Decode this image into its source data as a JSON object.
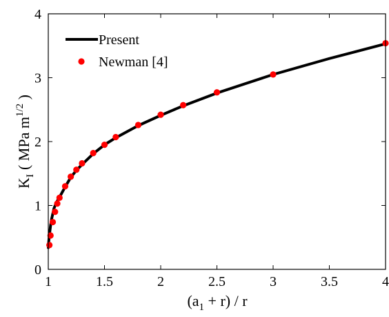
{
  "chart_data": {
    "type": "line",
    "xlabel": "(a1 + r) / r",
    "xlabel_parts": {
      "open": "(a",
      "sub": "1",
      "rest": " + r) / r"
    },
    "ylabel": "KI ( MPa m1/2 )",
    "ylabel_parts": {
      "base": "K",
      "sub": "I",
      "unit": "( MPa m",
      "sup": "1/2",
      "close": " )"
    },
    "xlim": [
      1,
      4
    ],
    "ylim": [
      0,
      4
    ],
    "xticks": [
      1,
      1.5,
      2,
      2.5,
      3,
      3.5,
      4
    ],
    "xtick_labels": [
      "1",
      "1.5",
      "2",
      "2.5",
      "3",
      "3.5",
      "4"
    ],
    "yticks": [
      0,
      1,
      2,
      3,
      4
    ],
    "ytick_labels": [
      "0",
      "1",
      "2",
      "3",
      "4"
    ],
    "grid": false,
    "legend_position": "top-left",
    "series": [
      {
        "name": "Present",
        "style": "line",
        "color": "#000000",
        "x": [
          1.0,
          1.005,
          1.01,
          1.02,
          1.03,
          1.05,
          1.07,
          1.1,
          1.15,
          1.2,
          1.25,
          1.3,
          1.4,
          1.5,
          1.6,
          1.8,
          2.0,
          2.2,
          2.5,
          3.0,
          3.5,
          4.0
        ],
        "y": [
          0.34,
          0.45,
          0.54,
          0.68,
          0.79,
          0.95,
          1.04,
          1.13,
          1.29,
          1.44,
          1.55,
          1.64,
          1.81,
          1.95,
          2.06,
          2.25,
          2.41,
          2.56,
          2.76,
          3.05,
          3.3,
          3.53
        ]
      },
      {
        "name": "Newman [4]",
        "style": "marker",
        "color": "#ff0000",
        "x": [
          1.01,
          1.02,
          1.04,
          1.06,
          1.08,
          1.1,
          1.15,
          1.2,
          1.25,
          1.3,
          1.4,
          1.5,
          1.6,
          1.8,
          2.0,
          2.2,
          2.5,
          3.0,
          4.0
        ],
        "y": [
          0.38,
          0.53,
          0.74,
          0.9,
          1.03,
          1.12,
          1.3,
          1.45,
          1.56,
          1.66,
          1.82,
          1.95,
          2.07,
          2.26,
          2.42,
          2.57,
          2.77,
          3.05,
          3.54
        ]
      }
    ]
  }
}
